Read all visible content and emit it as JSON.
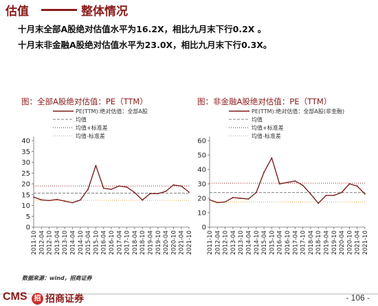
{
  "header": {
    "title_left": "估值",
    "title_right": "整体情况"
  },
  "paragraphs": [
    "十月末全部A股绝对估值水平为16.2X，相比九月末下行0.2X 。",
    "十月末非金融A股绝对估值水平为23.0X，相比九月末下行0.3X。"
  ],
  "chart_data": [
    {
      "type": "line",
      "title": "图：全部A股绝对估值：PE（TTM）",
      "x_categories": [
        "2011-10",
        "2012-04",
        "2012-10",
        "2013-04",
        "2013-10",
        "2014-04",
        "2014-10",
        "2015-04",
        "2015-10",
        "2016-04",
        "2016-10",
        "2017-04",
        "2017-10",
        "2018-04",
        "2018-10",
        "2019-04",
        "2019-10",
        "2020-04",
        "2020-10",
        "2021-04",
        "2021-10"
      ],
      "ylim": [
        0,
        40
      ],
      "yticks": [
        0,
        5,
        10,
        15,
        20,
        25,
        30,
        35,
        40
      ],
      "legend": [
        "PE(TTM):绝对估值：全部A股",
        "均值",
        "均值+标准差",
        "均值-标准差"
      ],
      "mean": 15.7,
      "upper": 19.0,
      "lower": 12.4,
      "series": [
        {
          "name": "PE(TTM):绝对估值：全部A股",
          "color": "#7B1F1F",
          "values": [
            13.9,
            12.6,
            12.3,
            12.8,
            12.0,
            11.3,
            12.5,
            17.5,
            28.5,
            18.0,
            17.5,
            19.0,
            18.5,
            16.0,
            12.5,
            15.5,
            15.5,
            16.5,
            19.5,
            19.0,
            16.2
          ]
        }
      ]
    },
    {
      "type": "line",
      "title": "图：非金融A股绝对估值：PE（TTM）",
      "x_categories": [
        "2011-10",
        "2012-04",
        "2012-10",
        "2013-04",
        "2013-10",
        "2014-04",
        "2014-10",
        "2015-04",
        "2015-10",
        "2016-04",
        "2016-10",
        "2017-04",
        "2017-10",
        "2018-04",
        "2018-10",
        "2019-04",
        "2019-10",
        "2020-04",
        "2020-10",
        "2021-04",
        "2021-10"
      ],
      "ylim": [
        0,
        60
      ],
      "yticks": [
        0,
        10,
        20,
        30,
        40,
        50,
        60
      ],
      "legend": [
        "PE(TTM):绝对估值：全部A股(非金融)",
        "均值",
        "均值+标准差",
        "均值-标准差"
      ],
      "mean": 24.0,
      "upper": 30.5,
      "lower": 17.5,
      "series": [
        {
          "name": "PE(TTM):绝对估值：全部A股(非金融)",
          "color": "#7B1F1F",
          "values": [
            19.0,
            17.0,
            17.5,
            20.5,
            20.0,
            19.5,
            24.0,
            38.0,
            48.0,
            30.0,
            31.0,
            32.0,
            29.0,
            23.0,
            16.5,
            22.0,
            22.0,
            24.0,
            30.0,
            28.5,
            23.0
          ]
        }
      ]
    }
  ],
  "footer": {
    "source": "数据来源：wind，招商证券",
    "logo_en": "CMS",
    "logo_mark": "招",
    "logo_cn": "招商证券",
    "page": "- 106 -"
  },
  "colors": {
    "brand": "#8B1A1A",
    "series": "#7B1F1F",
    "mean": "#808080",
    "upper": "#8B1A1A",
    "lower": "#E6A23C"
  }
}
